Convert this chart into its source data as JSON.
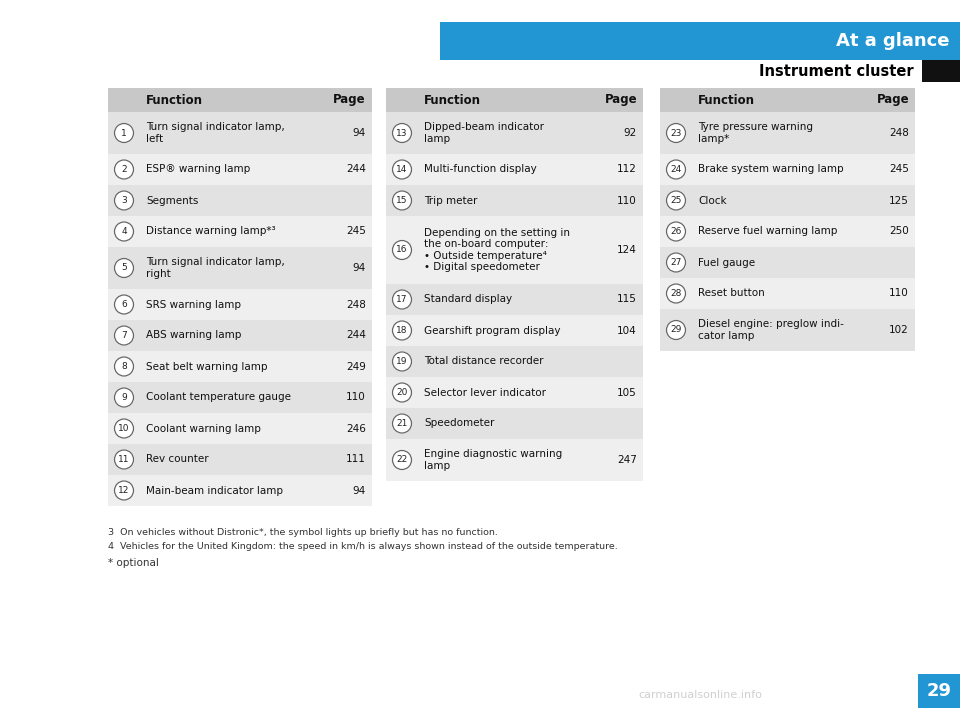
{
  "title_bar": "At a glance",
  "subtitle": "Instrument cluster",
  "title_bar_color": "#2196d3",
  "title_text_color": "#ffffff",
  "subtitle_color": "#000000",
  "bg_color": "#ffffff",
  "table_header_bg": "#c8c8c8",
  "table_row_bg_even": "#e2e2e2",
  "table_row_bg_odd": "#efefef",
  "page_number": "29",
  "page_number_bg": "#2196d3",
  "black_square_color": "#111111",
  "footnote3": "3  On vehicles without Distronic*, the symbol lights up briefly but has no function.",
  "footnote4": "4  Vehicles for the United Kingdom: the speed in km/h is always shown instead of the outside temperature.",
  "footnote_optional": "* optional",
  "col1": {
    "items": [
      {
        "num": "1",
        "function": "Turn signal indicator lamp,\nleft",
        "page": "94"
      },
      {
        "num": "2",
        "function": "ESP® warning lamp",
        "page": "244"
      },
      {
        "num": "3",
        "function": "Segments",
        "page": ""
      },
      {
        "num": "4",
        "function": "Distance warning lamp*³",
        "page": "245"
      },
      {
        "num": "5",
        "function": "Turn signal indicator lamp,\nright",
        "page": "94"
      },
      {
        "num": "6",
        "function": "SRS warning lamp",
        "page": "248"
      },
      {
        "num": "7",
        "function": "ABS warning lamp",
        "page": "244"
      },
      {
        "num": "8",
        "function": "Seat belt warning lamp",
        "page": "249"
      },
      {
        "num": "9",
        "function": "Coolant temperature gauge",
        "page": "110"
      },
      {
        "num": "10",
        "function": "Coolant warning lamp",
        "page": "246"
      },
      {
        "num": "11",
        "function": "Rev counter",
        "page": "111"
      },
      {
        "num": "12",
        "function": "Main-beam indicator lamp",
        "page": "94"
      }
    ]
  },
  "col2": {
    "items": [
      {
        "num": "13",
        "function": "Dipped-beam indicator\nlamp",
        "page": "92"
      },
      {
        "num": "14",
        "function": "Multi-function display",
        "page": "112"
      },
      {
        "num": "15",
        "function": "Trip meter",
        "page": "110"
      },
      {
        "num": "16",
        "function": "Depending on the setting in\nthe on-board computer:\n• Outside temperature⁴\n• Digital speedometer",
        "page": "124"
      },
      {
        "num": "17",
        "function": "Standard display",
        "page": "115"
      },
      {
        "num": "18",
        "function": "Gearshift program display",
        "page": "104"
      },
      {
        "num": "19",
        "function": "Total distance recorder",
        "page": ""
      },
      {
        "num": "20",
        "function": "Selector lever indicator",
        "page": "105"
      },
      {
        "num": "21",
        "function": "Speedometer",
        "page": ""
      },
      {
        "num": "22",
        "function": "Engine diagnostic warning\nlamp",
        "page": "247"
      }
    ]
  },
  "col3": {
    "items": [
      {
        "num": "23",
        "function": "Tyre pressure warning\nlamp*",
        "page": "248"
      },
      {
        "num": "24",
        "function": "Brake system warning lamp",
        "page": "245"
      },
      {
        "num": "25",
        "function": "Clock",
        "page": "125"
      },
      {
        "num": "26",
        "function": "Reserve fuel warning lamp",
        "page": "250"
      },
      {
        "num": "27",
        "function": "Fuel gauge",
        "page": ""
      },
      {
        "num": "28",
        "function": "Reset button",
        "page": "110"
      },
      {
        "num": "29",
        "function": "Diesel engine: preglow indi-\ncator lamp",
        "page": "102"
      }
    ]
  }
}
